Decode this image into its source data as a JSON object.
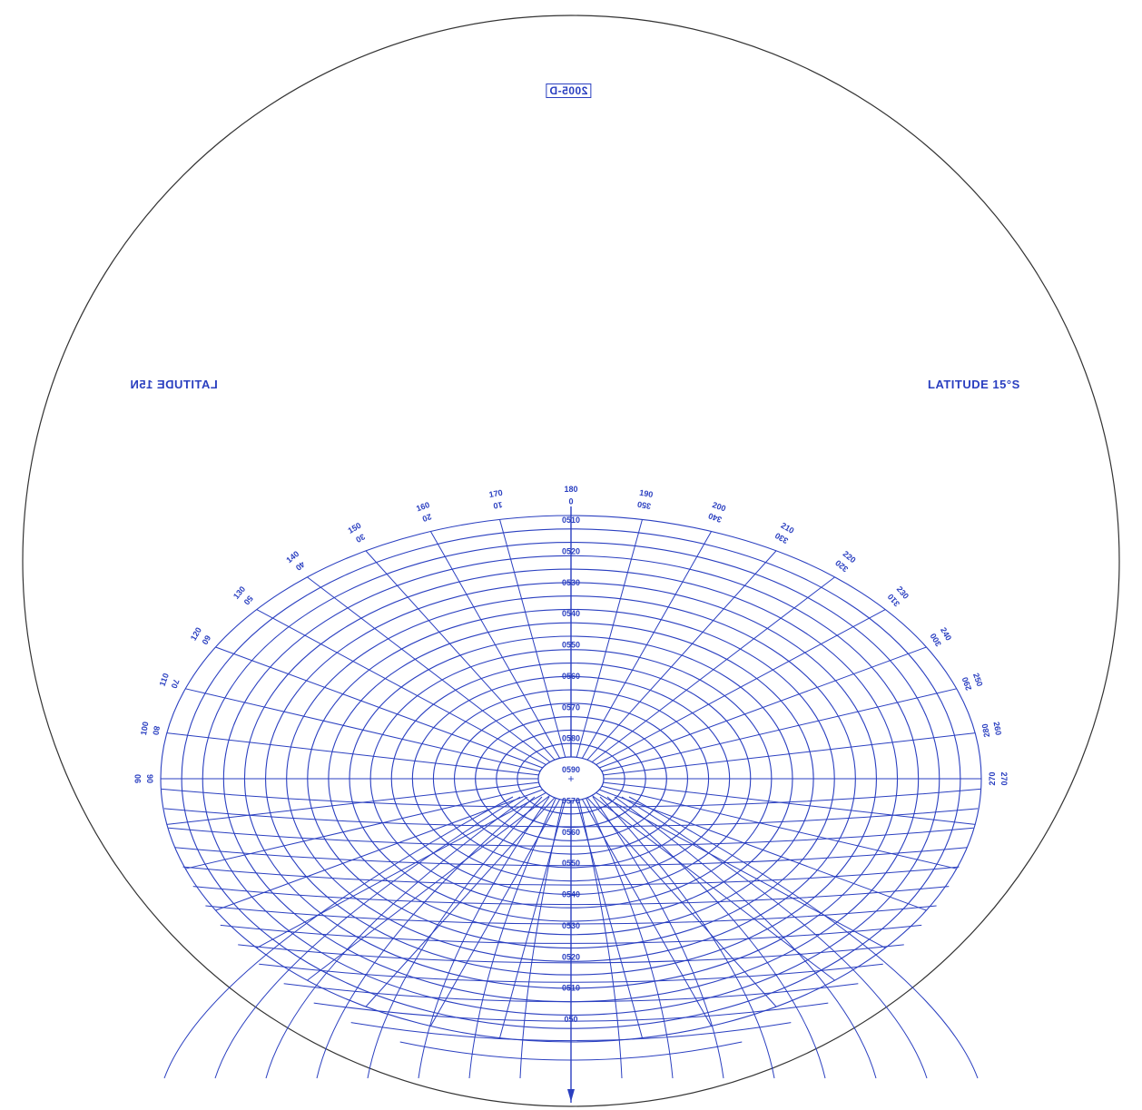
{
  "header": {
    "code_label": "2005-D"
  },
  "labels": {
    "left_latitude": "LATITUDE 15N",
    "right_latitude": "LATITUDE 15°S"
  },
  "diagram": {
    "azimuth_outer": [
      "90",
      "100",
      "110",
      "120",
      "130",
      "140",
      "150",
      "160",
      "170",
      "180",
      "190",
      "200",
      "210",
      "220",
      "230",
      "240",
      "250",
      "260",
      "270"
    ],
    "azimuth_inner": [
      "90",
      "80",
      "70",
      "60",
      "50",
      "40",
      "30",
      "20",
      "10",
      "0",
      "350",
      "340",
      "330",
      "320",
      "310",
      "300",
      "290",
      "280",
      "270"
    ],
    "center_scale": [
      "0510",
      "0520",
      "0530",
      "0540",
      "0550",
      "0560",
      "0570",
      "0580",
      "0590",
      "0570",
      "0560",
      "0550",
      "0540",
      "0530",
      "0520",
      "0510",
      "050"
    ],
    "colors": {
      "grid": "#2a3fc0",
      "outline": "#333333",
      "background": "#ffffff"
    }
  }
}
